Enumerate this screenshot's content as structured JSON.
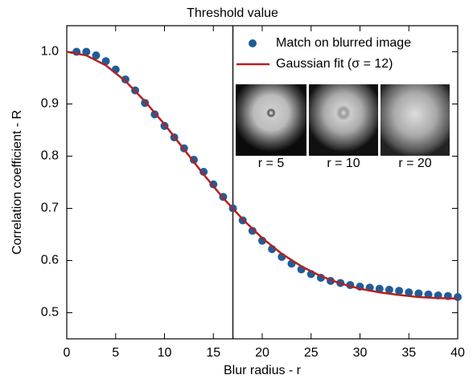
{
  "chart_data": {
    "type": "scatter",
    "xlabel": "Blur radius - r",
    "ylabel": "Correlation coefficient - R",
    "xlim": [
      0,
      40
    ],
    "xticks": [
      0,
      5,
      10,
      15,
      20,
      25,
      30,
      35,
      40
    ],
    "ylim": [
      0.45,
      1.05
    ],
    "yticks": [
      {
        "value": 0.5,
        "label": "0.5"
      },
      {
        "value": 0.6,
        "label": "0.6"
      },
      {
        "value": 0.7,
        "label": "0.7"
      },
      {
        "value": 0.8,
        "label": "0.8"
      },
      {
        "value": 0.9,
        "label": "0.9"
      },
      {
        "value": 1.0,
        "label": "1.0"
      }
    ],
    "series": [
      {
        "name": "Match on blurred image",
        "color": "#1f5d99",
        "kind": "points",
        "x": [
          1,
          2,
          3,
          4,
          5,
          6,
          7,
          8,
          9,
          10,
          11,
          12,
          13,
          14,
          15,
          16,
          17,
          18,
          19,
          20,
          21,
          22,
          23,
          24,
          25,
          26,
          27,
          28,
          29,
          30,
          31,
          32,
          33,
          34,
          35,
          36,
          37,
          38,
          39,
          40
        ],
        "values": [
          1.0,
          1.0,
          0.993,
          0.982,
          0.966,
          0.947,
          0.926,
          0.902,
          0.88,
          0.858,
          0.836,
          0.815,
          0.793,
          0.77,
          0.746,
          0.722,
          0.7,
          0.677,
          0.657,
          0.638,
          0.622,
          0.607,
          0.594,
          0.583,
          0.574,
          0.567,
          0.561,
          0.557,
          0.553,
          0.55,
          0.548,
          0.546,
          0.544,
          0.542,
          0.539,
          0.537,
          0.535,
          0.533,
          0.532,
          0.53
        ]
      },
      {
        "name": "Gaussian fit (σ = 12)",
        "color": "#b22222",
        "kind": "line",
        "x": [
          0,
          2,
          4,
          6,
          8,
          10,
          12,
          14,
          16,
          18,
          20,
          22,
          24,
          26,
          28,
          30,
          32,
          34,
          36,
          38,
          40
        ],
        "values": [
          1.0,
          0.993,
          0.974,
          0.944,
          0.905,
          0.861,
          0.813,
          0.765,
          0.72,
          0.679,
          0.643,
          0.613,
          0.589,
          0.57,
          0.556,
          0.546,
          0.539,
          0.534,
          0.53,
          0.528,
          0.527
        ]
      }
    ],
    "threshold": {
      "x": 17,
      "label": "Threshold value"
    },
    "insets": [
      {
        "label": "r = 5"
      },
      {
        "label": "r = 10"
      },
      {
        "label": "r = 20"
      }
    ]
  }
}
